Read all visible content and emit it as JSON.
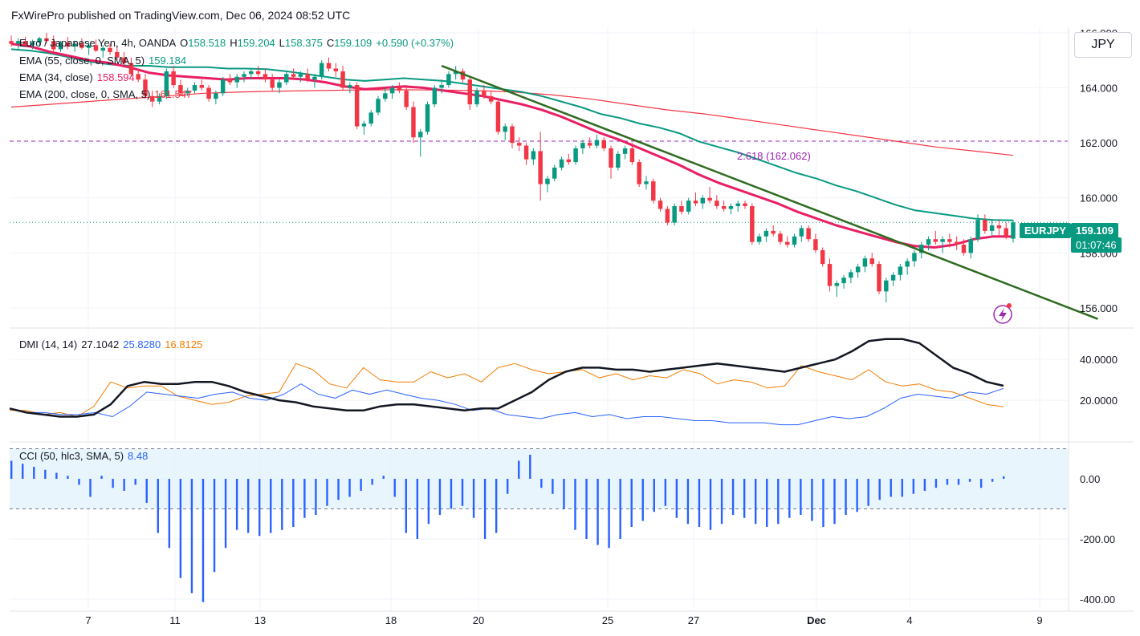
{
  "publisher": "FxWirePro published on TradingView.com, Dec 06, 2024 08:52 UTC",
  "currency_button": "JPY",
  "symbol": {
    "name": "Euro / Japanese Yen, 4h, OANDA",
    "o_label": "O",
    "o": "158.518",
    "h_label": "H",
    "h": "159.204",
    "l_label": "L",
    "l": "158.375",
    "c_label": "C",
    "c": "159.109",
    "change": "+0.590 (+0.37%)"
  },
  "indicators": {
    "ema55": {
      "label": "EMA (55, close, 0, SMA, 5)",
      "value": "159.184",
      "color": "#089981"
    },
    "ema34": {
      "label": "EMA (34, close)",
      "value": "158.594",
      "color": "#e91e63"
    },
    "ema200": {
      "label": "EMA (200, close, 0, SMA, 5)",
      "value": "161.547",
      "color": "#f23645"
    },
    "dmi": {
      "label": "DMI (14, 14)",
      "adx": "27.1042",
      "plus_di": "25.8280",
      "minus_di": "16.8125",
      "adx_color": "#131722",
      "plus_color": "#2962ff",
      "minus_color": "#f57c00"
    },
    "cci": {
      "label": "CCI (50, hlc3, SMA, 5)",
      "value": "8.48",
      "color": "#2962ff"
    }
  },
  "price_tag": {
    "symbol": "EURJPY",
    "price": "159.109",
    "countdown": "01:07:46"
  },
  "fib_label": "2.618 (162.062)",
  "colors": {
    "up": "#089981",
    "down": "#f23645",
    "trendline": "#2e6b1f",
    "grid": "#f0f3fa",
    "band": "#e3f2fd",
    "fib": "#9c27b0"
  },
  "chart_data": {
    "type": "candlestick",
    "symbol": "EURJPY",
    "timeframe": "4h",
    "x_ticks": [
      "7",
      "11",
      "13",
      "18",
      "20",
      "25",
      "27",
      "Dec",
      "4",
      "9"
    ],
    "price_ticks": [
      "166.000",
      "164.000",
      "162.000",
      "160.000",
      "158.000",
      "156.000"
    ],
    "price_ylim": [
      155.3,
      166.2
    ],
    "dmi_ticks": [
      "40.0000",
      "20.0000"
    ],
    "dmi_ylim": [
      0,
      55
    ],
    "cci_ticks": [
      "0.00",
      "-200.00",
      "-400.00"
    ],
    "cci_ylim": [
      -440,
      120
    ],
    "cci_band": [
      -100,
      100
    ],
    "candles": [
      [
        165.7,
        165.9,
        165.5,
        165.6
      ],
      [
        165.6,
        165.8,
        165.4,
        165.7
      ],
      [
        165.7,
        165.85,
        165.5,
        165.55
      ],
      [
        165.55,
        165.75,
        165.4,
        165.65
      ],
      [
        165.65,
        165.85,
        165.5,
        165.8
      ],
      [
        165.8,
        166.0,
        165.6,
        165.7
      ],
      [
        165.7,
        165.9,
        165.3,
        165.4
      ],
      [
        165.4,
        165.7,
        165.3,
        165.65
      ],
      [
        165.65,
        165.85,
        165.4,
        165.5
      ],
      [
        165.5,
        165.7,
        165.3,
        165.6
      ],
      [
        165.6,
        165.8,
        165.4,
        165.45
      ],
      [
        165.45,
        165.65,
        165.2,
        165.55
      ],
      [
        165.55,
        165.75,
        165.3,
        165.35
      ],
      [
        165.35,
        165.55,
        165.1,
        165.45
      ],
      [
        165.45,
        165.6,
        165.2,
        165.3
      ],
      [
        165.3,
        165.5,
        165.0,
        165.1
      ],
      [
        165.1,
        165.3,
        164.8,
        164.9
      ],
      [
        164.9,
        165.1,
        164.4,
        164.5
      ],
      [
        164.5,
        164.7,
        164.2,
        164.3
      ],
      [
        164.3,
        164.5,
        163.6,
        163.7
      ],
      [
        163.7,
        163.9,
        163.3,
        163.5
      ],
      [
        163.5,
        163.8,
        163.4,
        163.7
      ],
      [
        163.7,
        164.7,
        163.6,
        164.6
      ],
      [
        164.6,
        164.8,
        164.0,
        164.1
      ],
      [
        164.1,
        164.3,
        163.7,
        163.8
      ],
      [
        163.8,
        164.0,
        163.7,
        163.9
      ],
      [
        163.9,
        164.2,
        163.8,
        164.1
      ],
      [
        164.1,
        164.3,
        163.9,
        164.0
      ],
      [
        164.0,
        164.1,
        163.5,
        163.6
      ],
      [
        163.6,
        163.9,
        163.4,
        163.8
      ],
      [
        163.8,
        164.4,
        163.7,
        164.3
      ],
      [
        164.3,
        164.5,
        164.1,
        164.2
      ],
      [
        164.2,
        164.5,
        164.0,
        164.4
      ],
      [
        164.4,
        164.6,
        164.2,
        164.5
      ],
      [
        164.5,
        164.7,
        164.3,
        164.6
      ],
      [
        164.6,
        164.8,
        164.4,
        164.5
      ],
      [
        164.5,
        164.7,
        164.2,
        164.3
      ],
      [
        164.3,
        164.5,
        163.9,
        164.0
      ],
      [
        164.0,
        164.3,
        163.8,
        164.2
      ],
      [
        164.2,
        164.6,
        164.1,
        164.5
      ],
      [
        164.5,
        164.7,
        164.3,
        164.4
      ],
      [
        164.4,
        164.6,
        164.2,
        164.5
      ],
      [
        164.5,
        164.7,
        164.2,
        164.3
      ],
      [
        164.3,
        164.5,
        164.0,
        164.4
      ],
      [
        164.4,
        165.0,
        164.3,
        164.9
      ],
      [
        164.9,
        165.1,
        164.6,
        164.7
      ],
      [
        164.7,
        164.9,
        164.4,
        164.6
      ],
      [
        164.6,
        164.8,
        163.9,
        164.0
      ],
      [
        164.0,
        164.2,
        163.8,
        164.1
      ],
      [
        164.1,
        164.2,
        162.5,
        162.6
      ],
      [
        162.6,
        162.8,
        162.3,
        162.7
      ],
      [
        162.7,
        163.2,
        162.6,
        163.1
      ],
      [
        163.1,
        163.7,
        163.0,
        163.6
      ],
      [
        163.6,
        164.0,
        163.5,
        163.8
      ],
      [
        163.8,
        164.1,
        163.6,
        164.0
      ],
      [
        164.0,
        164.2,
        163.8,
        163.9
      ],
      [
        163.9,
        164.1,
        163.2,
        163.3
      ],
      [
        163.3,
        163.5,
        162.0,
        162.2
      ],
      [
        162.2,
        162.5,
        161.5,
        162.4
      ],
      [
        162.4,
        163.5,
        162.3,
        163.4
      ],
      [
        163.4,
        164.1,
        163.3,
        164.0
      ],
      [
        164.0,
        164.3,
        163.8,
        164.1
      ],
      [
        164.1,
        164.6,
        164.0,
        164.5
      ],
      [
        164.5,
        164.8,
        164.3,
        164.6
      ],
      [
        164.6,
        164.7,
        164.2,
        164.3
      ],
      [
        164.3,
        164.4,
        163.2,
        163.4
      ],
      [
        163.4,
        164.0,
        163.3,
        163.9
      ],
      [
        163.9,
        164.1,
        163.6,
        163.7
      ],
      [
        163.7,
        163.9,
        163.4,
        163.5
      ],
      [
        163.5,
        163.6,
        162.3,
        162.4
      ],
      [
        162.4,
        162.7,
        162.1,
        162.6
      ],
      [
        162.6,
        162.7,
        161.8,
        162.0
      ],
      [
        162.0,
        162.2,
        161.7,
        161.9
      ],
      [
        161.9,
        162.0,
        161.2,
        161.4
      ],
      [
        161.4,
        161.8,
        161.2,
        161.7
      ],
      [
        161.7,
        162.4,
        159.9,
        160.5
      ],
      [
        160.5,
        160.8,
        160.2,
        160.7
      ],
      [
        160.7,
        161.2,
        160.6,
        161.1
      ],
      [
        161.1,
        161.5,
        161.0,
        161.4
      ],
      [
        161.4,
        161.6,
        161.2,
        161.3
      ],
      [
        161.3,
        161.9,
        161.2,
        161.8
      ],
      [
        161.8,
        162.1,
        161.6,
        162.0
      ],
      [
        162.0,
        162.2,
        161.8,
        161.9
      ],
      [
        161.9,
        162.3,
        161.8,
        162.1
      ],
      [
        162.1,
        162.2,
        161.7,
        161.8
      ],
      [
        161.8,
        161.9,
        160.7,
        161.1
      ],
      [
        161.1,
        161.7,
        161.0,
        161.6
      ],
      [
        161.6,
        161.9,
        161.4,
        161.8
      ],
      [
        161.8,
        162.0,
        161.2,
        161.3
      ],
      [
        161.3,
        161.4,
        160.4,
        160.5
      ],
      [
        160.5,
        160.8,
        160.3,
        160.6
      ],
      [
        160.6,
        160.7,
        159.8,
        159.9
      ],
      [
        159.9,
        160.0,
        159.5,
        159.6
      ],
      [
        159.6,
        159.7,
        159.0,
        159.1
      ],
      [
        159.1,
        159.8,
        159.0,
        159.7
      ],
      [
        159.7,
        159.9,
        159.4,
        159.5
      ],
      [
        159.5,
        160.0,
        159.4,
        159.9
      ],
      [
        159.9,
        160.2,
        159.7,
        159.8
      ],
      [
        159.8,
        160.1,
        159.6,
        160.0
      ],
      [
        160.0,
        160.4,
        159.8,
        159.9
      ],
      [
        159.9,
        160.1,
        159.6,
        159.7
      ],
      [
        159.7,
        159.9,
        159.5,
        159.6
      ],
      [
        159.6,
        159.8,
        159.4,
        159.7
      ],
      [
        159.7,
        159.9,
        159.5,
        159.8
      ],
      [
        159.8,
        159.9,
        159.6,
        159.7
      ],
      [
        159.7,
        159.8,
        158.3,
        158.4
      ],
      [
        158.4,
        158.7,
        158.3,
        158.6
      ],
      [
        158.6,
        158.9,
        158.4,
        158.8
      ],
      [
        158.8,
        159.0,
        158.6,
        158.7
      ],
      [
        158.7,
        158.8,
        158.3,
        158.4
      ],
      [
        158.4,
        158.6,
        158.2,
        158.3
      ],
      [
        158.3,
        158.7,
        158.2,
        158.6
      ],
      [
        158.6,
        159.0,
        158.4,
        158.9
      ],
      [
        158.9,
        159.0,
        158.4,
        158.5
      ],
      [
        158.5,
        158.7,
        158.0,
        158.1
      ],
      [
        158.1,
        158.2,
        157.5,
        157.6
      ],
      [
        157.6,
        157.8,
        156.6,
        156.8
      ],
      [
        156.8,
        157.0,
        156.4,
        156.9
      ],
      [
        156.9,
        157.2,
        156.7,
        157.1
      ],
      [
        157.1,
        157.4,
        156.9,
        157.3
      ],
      [
        157.3,
        157.6,
        157.1,
        157.5
      ],
      [
        157.5,
        157.9,
        157.3,
        157.8
      ],
      [
        157.8,
        158.0,
        157.5,
        157.6
      ],
      [
        157.6,
        157.7,
        156.5,
        156.6
      ],
      [
        156.6,
        157.1,
        156.2,
        157.0
      ],
      [
        157.0,
        157.3,
        156.8,
        157.2
      ],
      [
        157.2,
        157.6,
        157.0,
        157.5
      ],
      [
        157.5,
        157.8,
        157.2,
        157.7
      ],
      [
        157.7,
        158.1,
        157.5,
        158.0
      ],
      [
        158.0,
        158.4,
        157.8,
        158.3
      ],
      [
        158.3,
        158.6,
        158.1,
        158.5
      ],
      [
        158.5,
        158.8,
        158.3,
        158.4
      ],
      [
        158.4,
        158.6,
        158.0,
        158.5
      ],
      [
        158.5,
        158.7,
        158.2,
        158.4
      ],
      [
        158.4,
        158.6,
        158.1,
        158.3
      ],
      [
        158.3,
        158.5,
        157.9,
        158.0
      ],
      [
        158.0,
        158.6,
        157.8,
        158.5
      ],
      [
        158.5,
        159.4,
        158.4,
        159.2
      ],
      [
        159.2,
        159.4,
        158.7,
        158.8
      ],
      [
        158.8,
        159.2,
        158.6,
        159.0
      ],
      [
        159.0,
        159.2,
        158.6,
        158.9
      ],
      [
        158.9,
        159.1,
        158.5,
        158.6
      ],
      [
        158.518,
        159.204,
        158.375,
        159.109
      ]
    ],
    "ema55": [
      165.4,
      165.35,
      165.25,
      165.1,
      164.95,
      164.85,
      164.8,
      164.8,
      164.75,
      164.75,
      164.75,
      164.7,
      164.7,
      164.68,
      164.6,
      164.5,
      164.4,
      164.3,
      164.25,
      164.3,
      164.35,
      164.3,
      164.25,
      164.15,
      164.05,
      163.95,
      163.85,
      163.7,
      163.5,
      163.3,
      163.05,
      162.9,
      162.7,
      162.55,
      162.35,
      162.05,
      161.85,
      161.65,
      161.4,
      161.15,
      160.9,
      160.7,
      160.45,
      160.25,
      160.0,
      159.75,
      159.55,
      159.45,
      159.35,
      159.25,
      159.2,
      159.184
    ],
    "ema34": [
      165.6,
      165.5,
      165.3,
      165.15,
      165.0,
      164.9,
      164.75,
      164.55,
      164.45,
      164.4,
      164.35,
      164.3,
      164.35,
      164.35,
      164.35,
      164.3,
      164.2,
      164.05,
      163.95,
      164.0,
      164.05,
      164.0,
      163.9,
      163.8,
      163.7,
      163.55,
      163.4,
      163.2,
      162.95,
      162.65,
      162.35,
      162.1,
      161.8,
      161.5,
      161.2,
      160.85,
      160.55,
      160.3,
      160.05,
      159.8,
      159.5,
      159.25,
      159.0,
      158.8,
      158.6,
      158.4,
      158.25,
      158.2,
      158.3,
      158.5,
      158.6,
      158.594
    ],
    "ema200": [
      163.3,
      163.4,
      163.5,
      163.6,
      163.7,
      163.8,
      163.85,
      163.88,
      163.9,
      163.92,
      163.93,
      163.92,
      163.9,
      163.85,
      163.75,
      163.6,
      163.4,
      163.2,
      163.05,
      162.85,
      162.65,
      162.45,
      162.25,
      162.05,
      161.85,
      161.7,
      161.547
    ],
    "trendline": {
      "from": {
        "index": 61,
        "price": 164.8
      },
      "to": {
        "index": 154,
        "price": 155.6
      }
    },
    "fib_level": 162.062,
    "current_price": 159.109,
    "dmi": {
      "adx": [
        16,
        14,
        13,
        12,
        12,
        13,
        18,
        27,
        29,
        28,
        28,
        29,
        29,
        27,
        24,
        22,
        20,
        19,
        17,
        16,
        15,
        15,
        17,
        18,
        18,
        17,
        16,
        15,
        16,
        16,
        20,
        24,
        30,
        34,
        36,
        36,
        35,
        35,
        34,
        35,
        36,
        37,
        38,
        37,
        36,
        35,
        34,
        36,
        38,
        40,
        44,
        49,
        50,
        50,
        48,
        42,
        36,
        33,
        29,
        27.1042
      ],
      "plus_di": [
        16,
        14,
        14,
        13,
        13,
        14,
        12,
        17,
        24,
        23,
        22,
        21,
        23,
        24,
        21,
        20,
        23,
        28,
        23,
        21,
        25,
        23,
        25,
        23,
        21,
        20,
        18,
        15,
        16,
        13,
        12,
        11,
        13,
        14,
        12,
        13,
        11,
        12,
        12,
        11,
        10,
        10,
        9,
        9,
        9,
        8,
        8,
        10,
        12,
        11,
        12,
        16,
        21,
        23,
        22,
        21,
        24,
        23,
        25.828
      ],
      "minus_di": [
        15,
        15,
        13,
        14,
        12,
        17,
        29,
        26,
        27,
        27,
        22,
        20,
        18,
        19,
        22,
        23,
        24,
        38,
        35,
        28,
        26,
        36,
        30,
        29,
        29,
        34,
        31,
        33,
        29,
        36,
        38,
        35,
        33,
        34,
        35,
        31,
        33,
        30,
        32,
        31,
        35,
        33,
        28,
        30,
        29,
        26,
        27,
        37,
        34,
        32,
        30,
        35,
        29,
        27,
        28,
        25,
        24,
        21,
        18,
        16.8125
      ]
    },
    "cci": [
      60,
      50,
      40,
      30,
      20,
      10,
      -20,
      -60,
      10,
      -30,
      -40,
      -20,
      -80,
      -180,
      -230,
      -330,
      -380,
      -410,
      -310,
      -230,
      -170,
      -180,
      -190,
      -180,
      -170,
      -160,
      -130,
      -120,
      -90,
      -70,
      -60,
      -40,
      -20,
      10,
      -60,
      -180,
      -200,
      -150,
      -120,
      -100,
      -90,
      -130,
      -200,
      -180,
      -50,
      60,
      80,
      -30,
      -50,
      -100,
      -170,
      -200,
      -220,
      -230,
      -200,
      -160,
      -140,
      -110,
      -90,
      -130,
      -150,
      -160,
      -170,
      -150,
      -120,
      -130,
      -150,
      -160,
      -150,
      -130,
      -120,
      -140,
      -160,
      -150,
      -120,
      -110,
      -90,
      -70,
      -60,
      -60,
      -50,
      -40,
      -30,
      -20,
      -20,
      -10,
      -30,
      -10,
      8.48
    ]
  }
}
